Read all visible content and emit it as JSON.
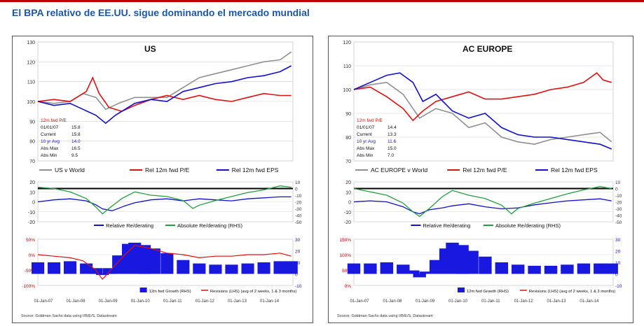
{
  "page": {
    "title": "El BPA relativo de EE.UU. sigue dominando el mercado mundial",
    "accent_color": "#c00000",
    "title_color": "#1f55a5"
  },
  "chart_data": [
    {
      "name": "US",
      "type": "line",
      "title": "US",
      "source": "Source: Goldman Sachs data using I/B/E/S, Datastream",
      "x_ticks": [
        "01-Jan-07",
        "01-Jan-08",
        "01-Jan-09",
        "01-Jan-10",
        "01-Jan-11",
        "01-Jan-12",
        "01-Jan-13",
        "01-Jan-14"
      ],
      "x_range": [
        2007.0,
        2014.9
      ],
      "top": {
        "ylim": [
          70,
          130
        ],
        "yticks": [
          70,
          80,
          90,
          100,
          110,
          120,
          130
        ],
        "legend": [
          "US v World",
          "Rel 12m fwd P/E",
          "Rel 12m fwd EPS"
        ],
        "stats": {
          "header": "12m fwd P/E",
          "rows": [
            {
              "label": "01/01/07",
              "value": "15.8"
            },
            {
              "label": "Current",
              "value": "15.8"
            },
            {
              "label": "10 yr Avg",
              "value": "14.0"
            },
            {
              "label": "Abs Max",
              "value": "16.5"
            },
            {
              "label": "Abs Min",
              "value": "9.5"
            }
          ]
        },
        "series": [
          {
            "name": "US v World",
            "color": "#909090",
            "x": [
              2007.0,
              2007.5,
              2008.0,
              2008.4,
              2008.8,
              2009.1,
              2009.5,
              2010.0,
              2010.5,
              2011.0,
              2011.5,
              2012.0,
              2012.5,
              2013.0,
              2013.5,
              2014.0,
              2014.5,
              2014.85
            ],
            "y": [
              100,
              99,
              100,
              104,
              102,
              96,
              99,
              102,
              102,
              102,
              107,
              112,
              114,
              116,
              118,
              120,
              121,
              125
            ]
          },
          {
            "name": "Rel 12m fwd P/E",
            "color": "#e01010",
            "x": [
              2007.0,
              2007.5,
              2008.0,
              2008.5,
              2008.7,
              2008.9,
              2009.2,
              2009.6,
              2010.0,
              2010.5,
              2011.0,
              2011.5,
              2012.0,
              2012.5,
              2013.0,
              2013.5,
              2014.0,
              2014.5,
              2014.85
            ],
            "y": [
              100,
              101,
              100,
              105,
              112,
              104,
              97,
              95,
              98,
              101,
              103,
              101,
              103,
              101,
              100,
              102,
              104,
              103,
              103
            ]
          },
          {
            "name": "Rel 12m fwd EPS",
            "color": "#1010d0",
            "x": [
              2007.0,
              2007.5,
              2008.0,
              2008.4,
              2008.8,
              2009.1,
              2009.4,
              2010.0,
              2010.5,
              2011.0,
              2011.5,
              2012.0,
              2012.5,
              2013.0,
              2013.5,
              2014.0,
              2014.5,
              2014.85
            ],
            "y": [
              100,
              98,
              99,
              96,
              93,
              89,
              93,
              99,
              101,
              100,
              105,
              107,
              109,
              110,
              112,
              113,
              115,
              118
            ]
          }
        ]
      },
      "middle": {
        "ylim": [
          -20,
          20
        ],
        "yticks": [
          -20,
          -10,
          0,
          10,
          20
        ],
        "ylim_right": [
          -50,
          10
        ],
        "yticks_right": [
          -50,
          -40,
          -30,
          -20,
          -10,
          0,
          10
        ],
        "legend": [
          "Relative Re/derating",
          "Absolute Re/derating (RHS)"
        ],
        "series": [
          {
            "name": "Relative Re/derating",
            "axis": "left",
            "color": "#1010d0",
            "x": [
              2007.0,
              2007.5,
              2008.0,
              2008.5,
              2008.8,
              2009.0,
              2009.3,
              2009.7,
              2010.0,
              2010.5,
              2011.0,
              2011.5,
              2012.0,
              2012.5,
              2013.0,
              2013.5,
              2014.0,
              2014.5,
              2014.85
            ],
            "y": [
              0,
              2,
              3,
              1,
              -3,
              -7,
              -9,
              -4,
              -1,
              2,
              3,
              1,
              3,
              2,
              1,
              3,
              4,
              5,
              5
            ]
          },
          {
            "name": "Absolute Re/derating (RHS)",
            "axis": "right",
            "color": "#20a040",
            "x": [
              2007.0,
              2007.5,
              2008.0,
              2008.5,
              2008.8,
              2009.0,
              2009.2,
              2009.6,
              2010.0,
              2010.5,
              2011.0,
              2011.5,
              2011.8,
              2012.0,
              2012.5,
              2013.0,
              2013.5,
              2014.0,
              2014.5,
              2014.85
            ],
            "y": [
              2,
              0,
              -5,
              -15,
              -28,
              -38,
              -30,
              -15,
              -5,
              -10,
              -12,
              -18,
              -30,
              -25,
              -18,
              -12,
              -6,
              -2,
              4,
              2
            ]
          }
        ]
      },
      "bottom": {
        "ylim": [
          -100,
          50
        ],
        "yticks": [
          "-100%",
          "-50%",
          "0%",
          "50%"
        ],
        "ylim_right": [
          -10,
          30
        ],
        "yticks_right": [
          -10,
          0,
          10,
          20,
          30
        ],
        "legend": [
          "12m fwd Growth (RHS)",
          "Revisions (LHS) (avg of 2 weeks, 1 & 3 months)"
        ],
        "bars": {
          "name": "12m fwd Growth (RHS)",
          "axis": "right",
          "color": "#1818e0",
          "x": [
            2007.0,
            2007.5,
            2008.0,
            2008.5,
            2008.8,
            2009.0,
            2009.2,
            2009.5,
            2009.8,
            2010.0,
            2010.3,
            2010.6,
            2011.0,
            2011.5,
            2012.0,
            2012.5,
            2013.0,
            2013.5,
            2014.0,
            2014.5,
            2014.85
          ],
          "y": [
            10,
            10,
            11,
            9,
            5,
            -1,
            5,
            16,
            26,
            27,
            25,
            22,
            18,
            12,
            9,
            8,
            8,
            9,
            10,
            11,
            11
          ]
        },
        "line": {
          "name": "Revisions (LHS) (avg of 2 weeks, 1 & 3 months)",
          "axis": "left",
          "color": "#e01010",
          "x": [
            2007.0,
            2007.5,
            2008.0,
            2008.4,
            2008.8,
            2009.0,
            2009.3,
            2009.7,
            2010.0,
            2010.5,
            2011.0,
            2011.5,
            2012.0,
            2012.5,
            2013.0,
            2013.5,
            2014.0,
            2014.5,
            2014.85
          ],
          "y": [
            0,
            -5,
            -10,
            -20,
            -50,
            -80,
            -45,
            0,
            30,
            20,
            5,
            0,
            -10,
            -5,
            -5,
            0,
            0,
            5,
            -5
          ]
        }
      }
    },
    {
      "name": "AC EUROPE",
      "type": "line",
      "title": "AC EUROPE",
      "source": "Source: Goldman Sachs data using I/B/E/S, Datastream",
      "x_ticks": [
        "01-Jan-07",
        "01-Jan-08",
        "01-Jan-09",
        "01-Jan-10",
        "01-Jan-11",
        "01-Jan-12",
        "01-Jan-13",
        "01-Jan-14"
      ],
      "x_range": [
        2007.0,
        2014.9
      ],
      "top": {
        "ylim": [
          70,
          120
        ],
        "yticks": [
          70,
          80,
          90,
          100,
          110,
          120
        ],
        "legend": [
          "AC EUROPE v World",
          "Rel 12m fwd P/E",
          "Rel 12m fwd EPS"
        ],
        "stats": {
          "header": "12m fwd P/E",
          "rows": [
            {
              "label": "01/01/07",
              "value": "14.4"
            },
            {
              "label": "Current",
              "value": "13.3"
            },
            {
              "label": "10 yr Avg",
              "value": "11.6"
            },
            {
              "label": "Abs Max",
              "value": "15.0"
            },
            {
              "label": "Abs Min",
              "value": "7.0"
            }
          ]
        },
        "series": [
          {
            "name": "AC EUROPE v World",
            "color": "#909090",
            "x": [
              2007.0,
              2007.5,
              2008.0,
              2008.5,
              2009.0,
              2009.5,
              2010.0,
              2010.5,
              2011.0,
              2011.5,
              2012.0,
              2012.5,
              2013.0,
              2013.5,
              2014.0,
              2014.5,
              2014.85
            ],
            "y": [
              100,
              102,
              103,
              98,
              88,
              92,
              90,
              84,
              86,
              80,
              78,
              77,
              79,
              80,
              81,
              82,
              78
            ]
          },
          {
            "name": "Rel 12m fwd P/E",
            "color": "#e01010",
            "x": [
              2007.0,
              2007.5,
              2008.0,
              2008.5,
              2008.8,
              2009.1,
              2009.5,
              2010.0,
              2010.5,
              2011.0,
              2011.5,
              2012.0,
              2012.5,
              2013.0,
              2013.5,
              2014.0,
              2014.4,
              2014.6,
              2014.85
            ],
            "y": [
              100,
              101,
              97,
              92,
              87,
              91,
              95,
              97,
              99,
              96,
              96,
              97,
              98,
              100,
              101,
              103,
              107,
              104,
              103
            ]
          },
          {
            "name": "Rel 12m fwd EPS",
            "color": "#1010d0",
            "x": [
              2007.0,
              2007.5,
              2008.0,
              2008.4,
              2008.8,
              2009.1,
              2009.5,
              2010.0,
              2010.5,
              2011.0,
              2011.5,
              2012.0,
              2012.5,
              2013.0,
              2013.5,
              2014.0,
              2014.5,
              2014.85
            ],
            "y": [
              100,
              103,
              106,
              107,
              103,
              95,
              98,
              91,
              88,
              90,
              84,
              81,
              80,
              80,
              79,
              78,
              77,
              75
            ]
          }
        ]
      },
      "middle": {
        "ylim": [
          -20,
          20
        ],
        "yticks": [
          -20,
          -10,
          0,
          10,
          20
        ],
        "ylim_right": [
          -50,
          10
        ],
        "yticks_right": [
          -50,
          -40,
          -30,
          -20,
          -10,
          0,
          10
        ],
        "legend": [
          "Relative Re/derating",
          "Absolute Re/derating (RHS)"
        ],
        "series": [
          {
            "name": "Relative Re/derating",
            "axis": "left",
            "color": "#1010d0",
            "x": [
              2007.0,
              2007.5,
              2008.0,
              2008.5,
              2008.8,
              2009.0,
              2009.3,
              2009.7,
              2010.0,
              2010.5,
              2011.0,
              2011.5,
              2012.0,
              2012.5,
              2013.0,
              2013.5,
              2014.0,
              2014.5,
              2014.85
            ],
            "y": [
              0,
              1,
              0,
              -5,
              -10,
              -12,
              -8,
              -6,
              -4,
              -2,
              -5,
              -7,
              -6,
              -3,
              -1,
              1,
              2,
              3,
              1
            ]
          },
          {
            "name": "Absolute Re/derating (RHS)",
            "axis": "right",
            "color": "#20a040",
            "x": [
              2007.0,
              2007.5,
              2008.0,
              2008.5,
              2008.8,
              2009.0,
              2009.3,
              2009.7,
              2010.0,
              2010.5,
              2011.0,
              2011.5,
              2011.8,
              2012.0,
              2012.5,
              2013.0,
              2013.5,
              2014.0,
              2014.5,
              2014.85
            ],
            "y": [
              0,
              -5,
              -10,
              -22,
              -35,
              -42,
              -30,
              -12,
              -3,
              -10,
              -15,
              -25,
              -38,
              -30,
              -22,
              -15,
              -8,
              -2,
              3,
              0
            ]
          }
        ]
      },
      "bottom": {
        "ylim": [
          0,
          150
        ],
        "yticks": [
          "0%",
          "50%",
          "100%",
          "150%"
        ],
        "ylim_right": [
          -10,
          30
        ],
        "yticks_right": [
          -10,
          0,
          10,
          20,
          30
        ],
        "legend": [
          "12m fwd Growth (RHS)",
          "Revisions (LHS) (avg of 2 weeks, 1 & 3 months)"
        ],
        "bars": {
          "name": "12m fwd Growth (RHS)",
          "axis": "right",
          "color": "#1818e0",
          "x": [
            2007.0,
            2007.5,
            2008.0,
            2008.5,
            2008.8,
            2009.0,
            2009.2,
            2009.5,
            2009.8,
            2010.0,
            2010.3,
            2010.6,
            2011.0,
            2011.5,
            2012.0,
            2012.5,
            2013.0,
            2013.5,
            2014.0,
            2014.5,
            2014.85
          ],
          "y": [
            9,
            9,
            10,
            8,
            3,
            -3,
            2,
            12,
            22,
            27,
            25,
            20,
            15,
            10,
            8,
            7,
            7,
            8,
            9,
            9,
            9
          ]
        }
      }
    }
  ]
}
